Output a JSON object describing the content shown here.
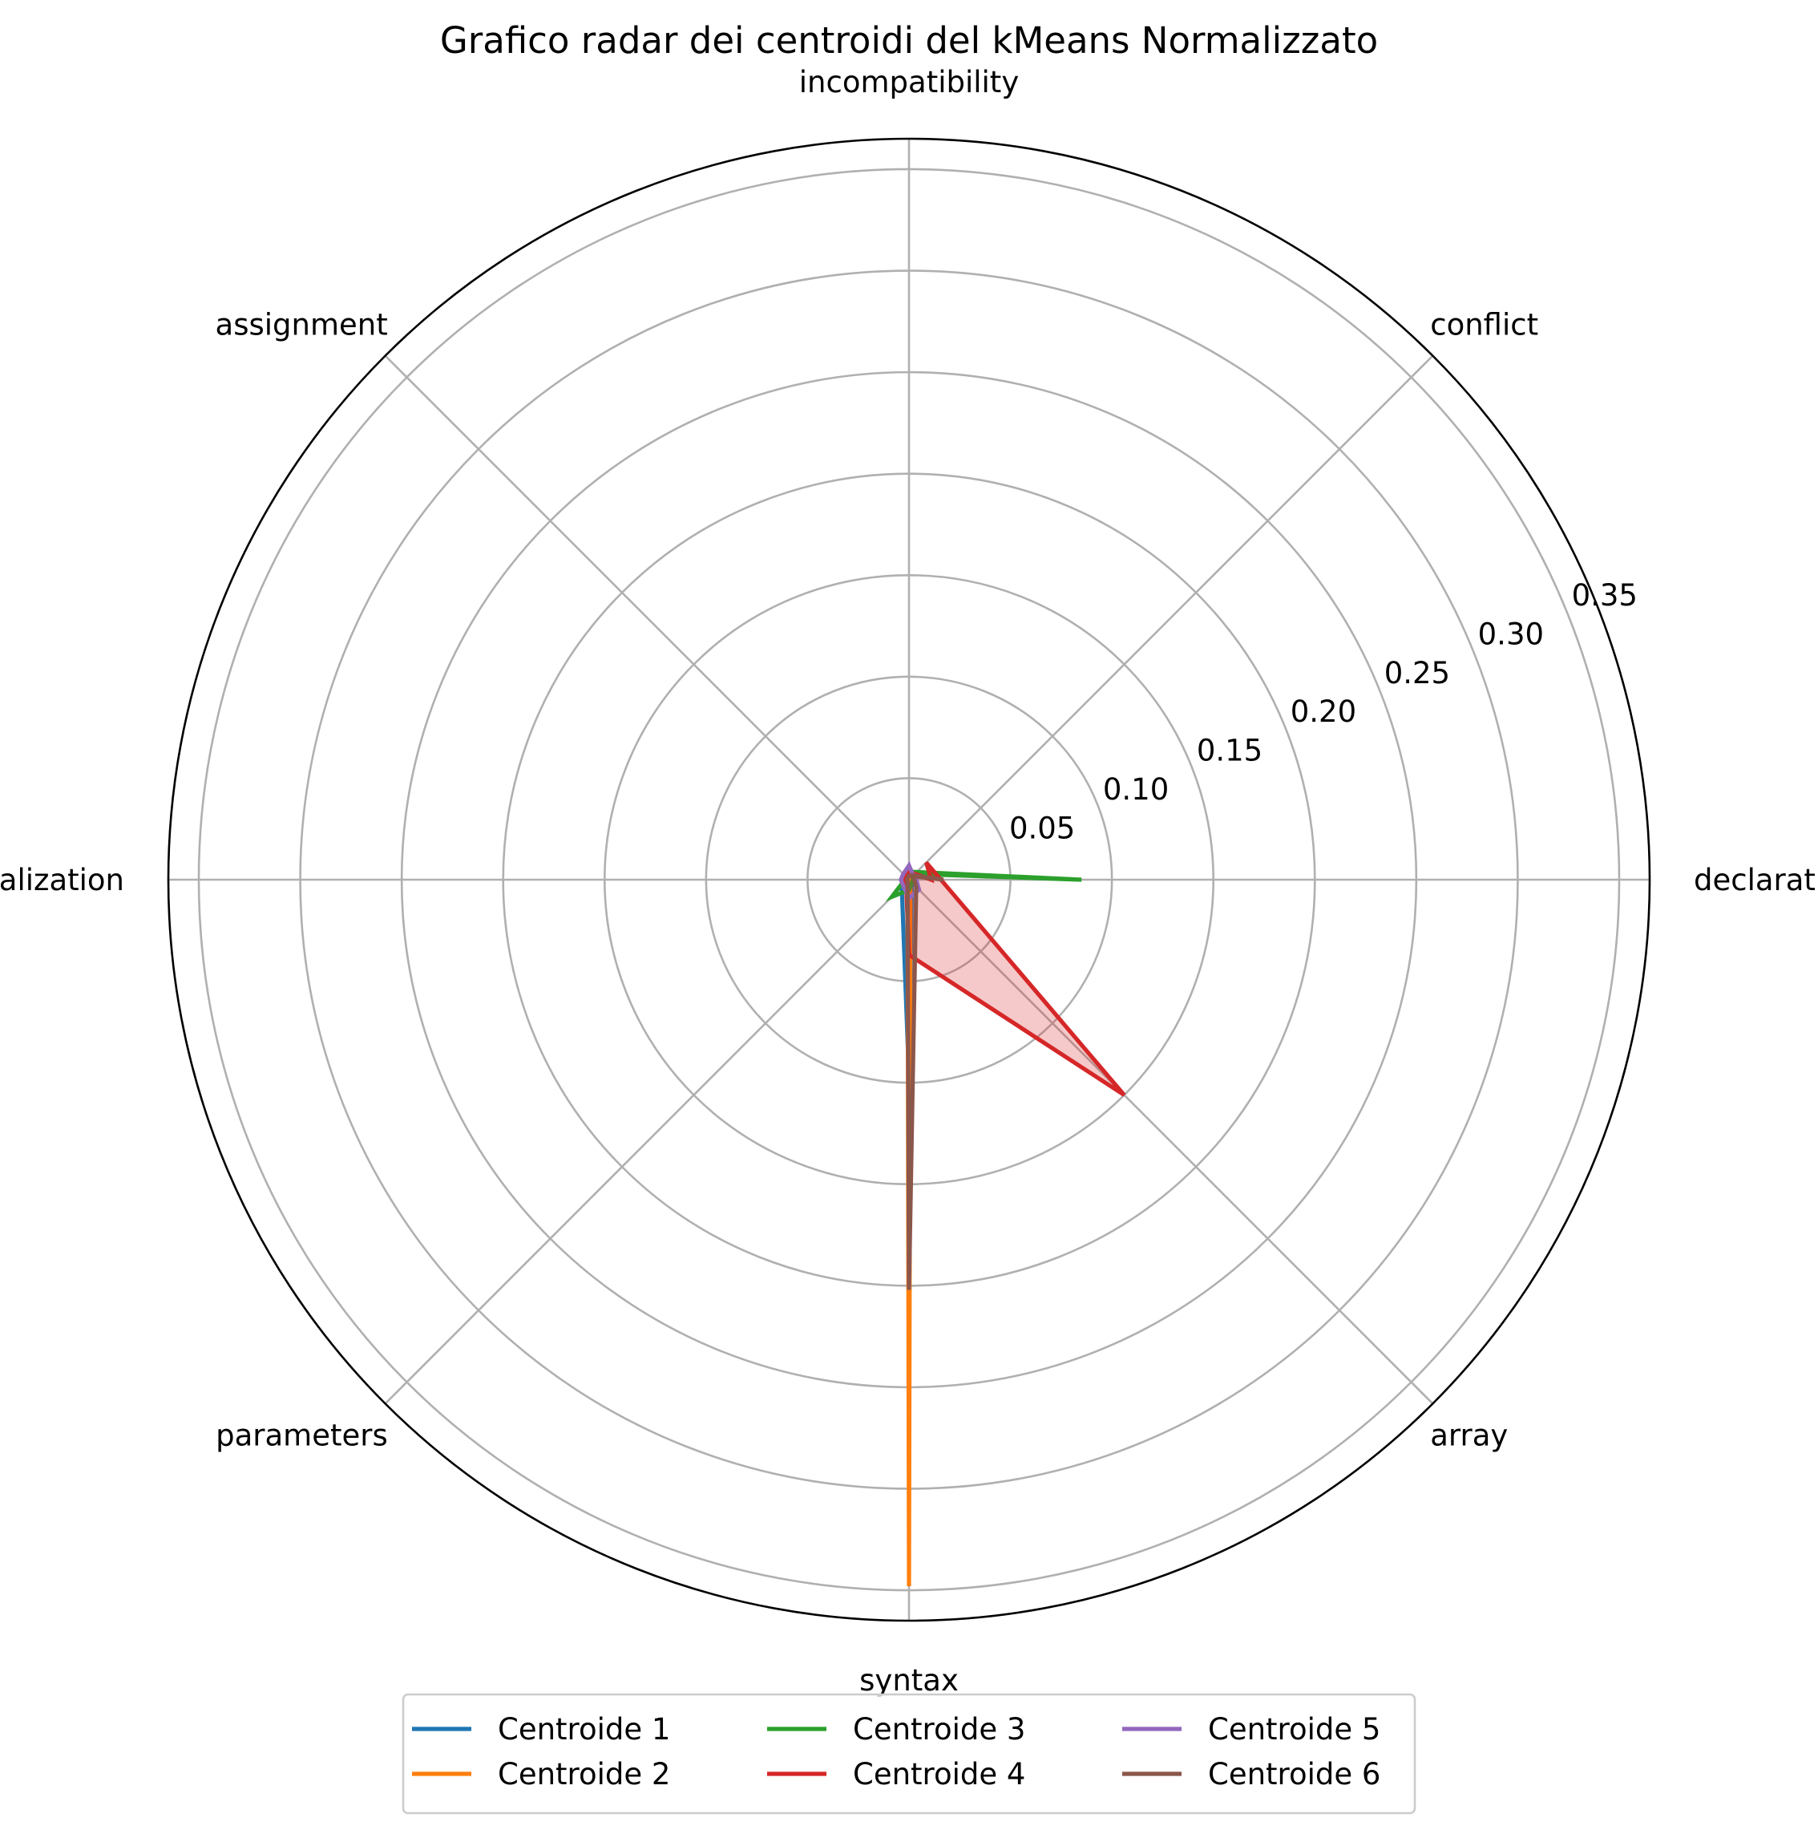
{
  "chart_data": {
    "type": "radar",
    "title": "Grafico radar dei centroidi del kMeans Normalizzato",
    "categories": [
      "declaration",
      "incompatibility",
      "assignment",
      "initialization",
      "parameters",
      "syntax",
      "array",
      "conflict"
    ],
    "category_angles_deg": [
      0,
      90,
      135,
      180,
      225,
      270,
      315,
      45
    ],
    "r_ticks": [
      0.05,
      0.1,
      0.15,
      0.2,
      0.25,
      0.3,
      0.35
    ],
    "r_tick_labels": [
      "0.05",
      "0.10",
      "0.15",
      "0.20",
      "0.25",
      "0.30",
      "0.35"
    ],
    "r_lim": [
      0,
      0.365
    ],
    "grid": true,
    "legend_position": "bottom-center",
    "legend_columns": 3,
    "series": [
      {
        "name": "Centroide 1",
        "color": "#1f77b4",
        "fill": false,
        "values": [
          0.002,
          0.002,
          0.002,
          0.002,
          0.005,
          0.098,
          0.002,
          0.002
        ]
      },
      {
        "name": "Centroide 2",
        "color": "#ff7f0e",
        "fill": false,
        "values": [
          0.001,
          0.001,
          0.001,
          0.001,
          0.001,
          0.348,
          0.001,
          0.001
        ]
      },
      {
        "name": "Centroide 3",
        "color": "#2ca02c",
        "fill": false,
        "values": [
          0.085,
          0.004,
          0.002,
          0.002,
          0.012,
          0.005,
          0.002,
          0.004
        ]
      },
      {
        "name": "Centroide 4",
        "color": "#d62728",
        "fill": true,
        "values": [
          0.011,
          0.004,
          0.002,
          0.002,
          0.002,
          0.037,
          0.15,
          0.012
        ]
      },
      {
        "name": "Centroide 5",
        "color": "#9467bd",
        "fill": false,
        "values": [
          0.003,
          0.007,
          0.004,
          0.004,
          0.004,
          0.009,
          0.007,
          0.004
        ]
      },
      {
        "name": "Centroide 6",
        "color": "#8c564b",
        "fill": false,
        "values": [
          0.017,
          0.002,
          0.001,
          0.001,
          0.001,
          0.202,
          0.005,
          0.003
        ]
      }
    ]
  }
}
